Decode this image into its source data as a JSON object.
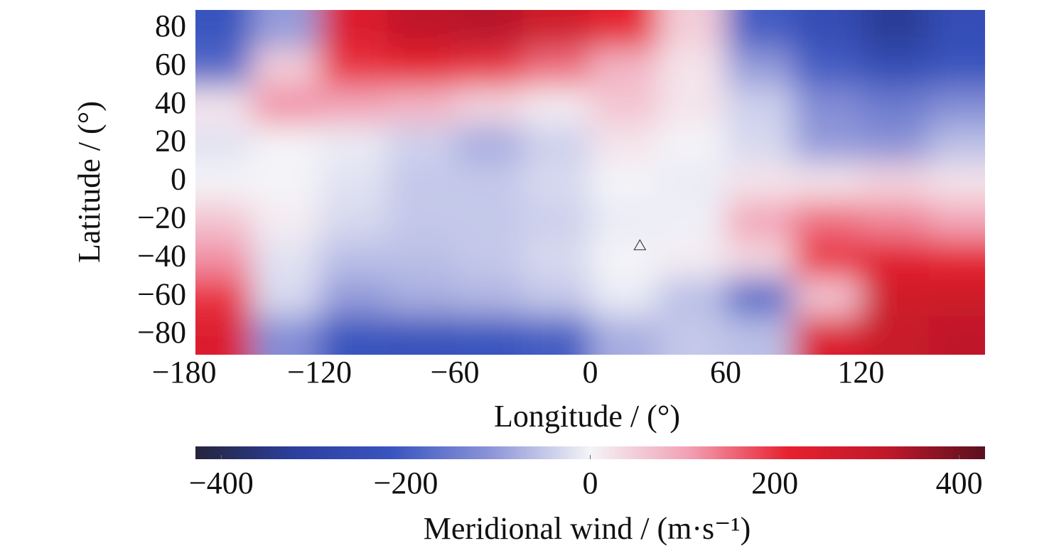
{
  "chart_data": {
    "type": "heatmap",
    "x_label": "Longitude / (°)",
    "y_label": "Latitude / (°)",
    "colorbar_label": "Meridional wind / (m·s⁻¹)",
    "x": [
      -165,
      -135,
      -105,
      -75,
      -45,
      -15,
      15,
      45,
      75,
      105,
      135,
      165
    ],
    "y": [
      80,
      60,
      40,
      20,
      0,
      -20,
      -40,
      -60,
      -80
    ],
    "z": [
      [
        -220,
        -100,
        250,
        320,
        330,
        280,
        220,
        50,
        -200,
        -250,
        -330,
        -250
      ],
      [
        -180,
        50,
        200,
        220,
        200,
        150,
        80,
        20,
        -100,
        -200,
        -250,
        -220
      ],
      [
        20,
        120,
        100,
        80,
        40,
        10,
        60,
        20,
        -40,
        -120,
        -150,
        -120
      ],
      [
        -20,
        0,
        -10,
        -40,
        -80,
        -40,
        20,
        0,
        -30,
        -100,
        -110,
        -60
      ],
      [
        0,
        0,
        -20,
        -50,
        -50,
        -30,
        0,
        -10,
        20,
        20,
        40,
        20
      ],
      [
        60,
        10,
        -30,
        -50,
        -50,
        -40,
        -10,
        -5,
        100,
        150,
        130,
        100
      ],
      [
        120,
        -20,
        -60,
        -60,
        -50,
        -30,
        0,
        10,
        40,
        200,
        230,
        220
      ],
      [
        200,
        -30,
        -100,
        -80,
        -70,
        -50,
        -10,
        -60,
        -180,
        60,
        280,
        290
      ],
      [
        250,
        -120,
        -220,
        -230,
        -220,
        -200,
        -80,
        -50,
        -60,
        250,
        300,
        320
      ]
    ],
    "markers": {
      "x": [
        22
      ],
      "y": [
        -33
      ]
    },
    "xlim": [
      -175,
      175
    ],
    "ylim": [
      -90,
      90
    ],
    "xticks": [
      {
        "value": -180,
        "label": "−180"
      },
      {
        "value": -120,
        "label": "−120"
      },
      {
        "value": -60,
        "label": "−60"
      },
      0,
      60,
      120
    ],
    "yticks": [
      80,
      60,
      40,
      20,
      0,
      {
        "value": -20,
        "label": "−20"
      },
      {
        "value": -40,
        "label": "−40"
      },
      {
        "value": -60,
        "label": "−60"
      },
      {
        "value": -80,
        "label": "−80"
      }
    ],
    "clim": [
      -428,
      428
    ],
    "colorbar_ticks": [
      {
        "value": -400,
        "label": "−400"
      },
      {
        "value": -200,
        "label": "−200"
      },
      0,
      200,
      400
    ],
    "colormap": [
      "#25243c",
      "#2c3f9e",
      "#3a55c0",
      "#8d95d8",
      "#f4f4f8",
      "#f2a0b4",
      "#e8202e",
      "#c0182a",
      "#5a1020"
    ]
  }
}
